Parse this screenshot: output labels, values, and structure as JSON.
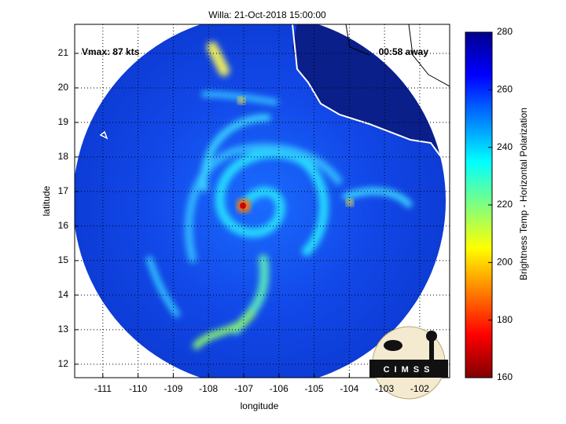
{
  "title": "Willa: 21-Oct-2018 15:00:00",
  "annotations": {
    "vmax": "Vmax: 87 kts",
    "away": "00:58 away"
  },
  "map": {
    "xlabel": "longitude",
    "ylabel": "latitude",
    "xlim": [
      -111.8,
      -101.15
    ],
    "ylim": [
      11.61,
      21.84
    ],
    "xticks": [
      -111,
      -110,
      -109,
      -108,
      -107,
      -106,
      -105,
      -104,
      -103,
      -102
    ],
    "yticks": [
      12,
      13,
      14,
      15,
      16,
      17,
      18,
      19,
      20,
      21
    ],
    "grid": true
  },
  "colorbar": {
    "label": "Brightness Temp - Horizontal Polarization",
    "lim": [
      160,
      280
    ],
    "ticks": [
      160,
      180,
      200,
      220,
      240,
      260,
      280
    ]
  },
  "logo": "CIMSS"
}
